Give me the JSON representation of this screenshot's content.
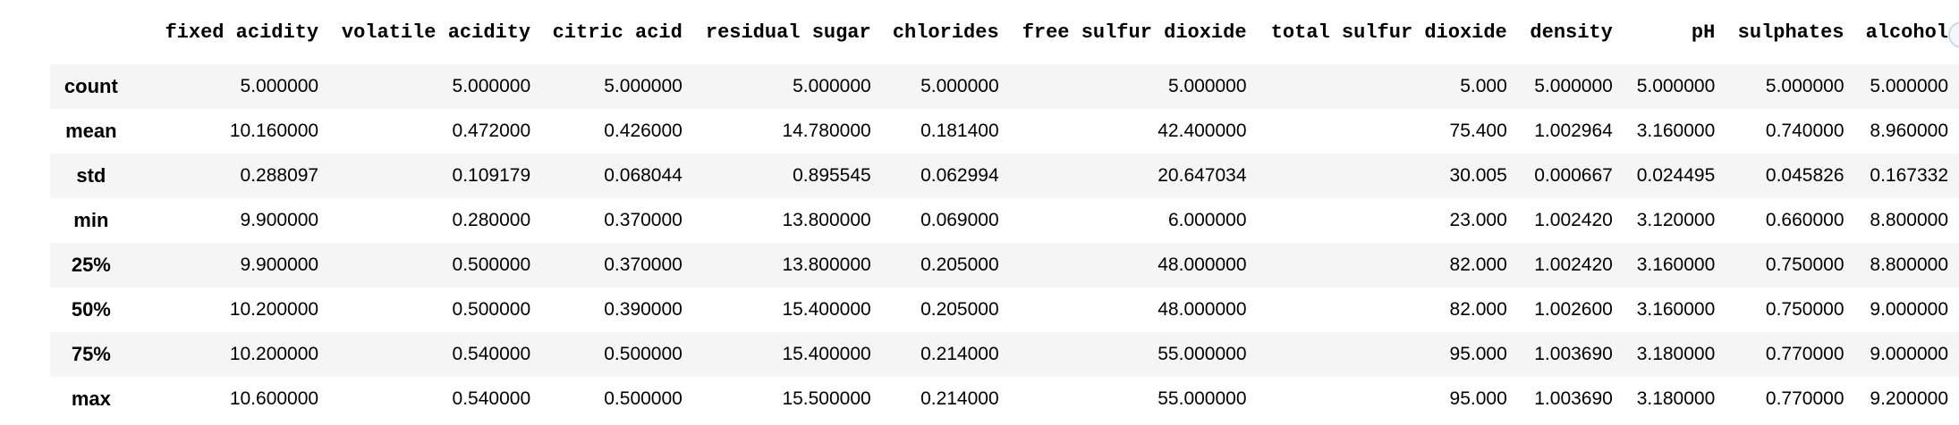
{
  "table": {
    "columns": [
      "",
      "fixed acidity",
      "volatile acidity",
      "citric acid",
      "residual sugar",
      "chlorides",
      "free sulfur dioxide",
      "total sulfur dioxide",
      "density",
      "pH",
      "sulphates",
      "alcohol"
    ],
    "rows": [
      {
        "index": "count",
        "cells": [
          "5.000000",
          "5.000000",
          "5.000000",
          "5.000000",
          "5.000000",
          "5.000000",
          "5.000",
          "5.000000",
          "5.000000",
          "5.000000",
          "5.000000"
        ]
      },
      {
        "index": "mean",
        "cells": [
          "10.160000",
          "0.472000",
          "0.426000",
          "14.780000",
          "0.181400",
          "42.400000",
          "75.400",
          "1.002964",
          "3.160000",
          "0.740000",
          "8.960000"
        ]
      },
      {
        "index": "std",
        "cells": [
          "0.288097",
          "0.109179",
          "0.068044",
          "0.895545",
          "0.062994",
          "20.647034",
          "30.005",
          "0.000667",
          "0.024495",
          "0.045826",
          "0.167332"
        ]
      },
      {
        "index": "min",
        "cells": [
          "9.900000",
          "0.280000",
          "0.370000",
          "13.800000",
          "0.069000",
          "6.000000",
          "23.000",
          "1.002420",
          "3.120000",
          "0.660000",
          "8.800000"
        ]
      },
      {
        "index": "25%",
        "cells": [
          "9.900000",
          "0.500000",
          "0.370000",
          "13.800000",
          "0.205000",
          "48.000000",
          "82.000",
          "1.002420",
          "3.160000",
          "0.750000",
          "8.800000"
        ]
      },
      {
        "index": "50%",
        "cells": [
          "10.200000",
          "0.500000",
          "0.390000",
          "15.400000",
          "0.205000",
          "48.000000",
          "82.000",
          "1.002600",
          "3.160000",
          "0.750000",
          "9.000000"
        ]
      },
      {
        "index": "75%",
        "cells": [
          "10.200000",
          "0.540000",
          "0.500000",
          "15.400000",
          "0.214000",
          "55.000000",
          "95.000",
          "1.003690",
          "3.180000",
          "0.770000",
          "9.000000"
        ]
      },
      {
        "index": "max",
        "cells": [
          "10.600000",
          "0.540000",
          "0.500000",
          "15.500000",
          "0.214000",
          "55.000000",
          "95.000",
          "1.003690",
          "3.180000",
          "0.770000",
          "9.200000"
        ]
      }
    ]
  }
}
